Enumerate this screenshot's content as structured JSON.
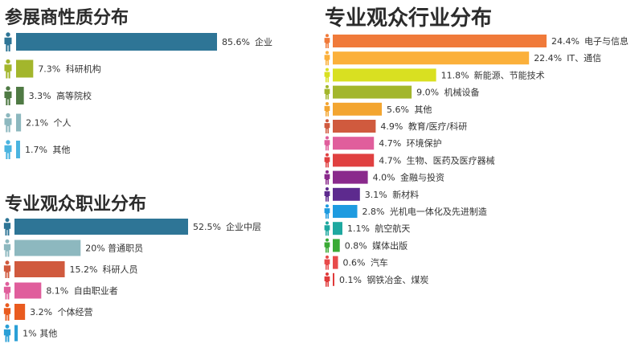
{
  "chart_data": [
    {
      "id": "exhibitor",
      "type": "bar",
      "title": "参展商性质分布",
      "categories": [
        "企业",
        "科研机构",
        "高等院校",
        "个人",
        "其他"
      ],
      "values": [
        85.6,
        7.3,
        3.3,
        2.1,
        1.7
      ],
      "value_labels": [
        "85.6%",
        "7.3%",
        "3.3%",
        "2.1%",
        "1.7%"
      ],
      "colors": [
        "#2e7596",
        "#a3b62c",
        "#4f7a44",
        "#8db8bf",
        "#4ab4e0"
      ]
    },
    {
      "id": "occupation",
      "type": "bar",
      "title": "专业观众职业分布",
      "categories": [
        "企业中层",
        "普通职员",
        "科研人员",
        "自由职业者",
        "个体经营",
        "其他"
      ],
      "values": [
        52.5,
        20,
        15.2,
        8.1,
        3.2,
        1
      ],
      "value_labels": [
        "52.5%",
        "20%",
        "15.2%",
        "8.1%",
        "3.2%",
        "1%"
      ],
      "colors": [
        "#2e7596",
        "#8db8bf",
        "#d05a3e",
        "#e05e9c",
        "#e95b1f",
        "#2a9fd6"
      ]
    },
    {
      "id": "industry",
      "type": "bar",
      "title": "专业观众行业分布",
      "categories": [
        "电子与信息",
        "IT、通信",
        "新能源、节能技术",
        "机械设备",
        "其他",
        "教育/医疗/科研",
        "环境保护",
        "生物、医药及医疗器械",
        "金融与投资",
        "新材料",
        "光机电一体化及先进制造",
        "航空航天",
        "媒体出版",
        "汽车",
        "钢铁冶金、煤炭"
      ],
      "values": [
        24.4,
        22.4,
        11.8,
        9.0,
        5.6,
        4.9,
        4.7,
        4.7,
        4.0,
        3.1,
        2.8,
        1.1,
        0.8,
        0.6,
        0.1
      ],
      "value_labels": [
        "24.4%",
        "22.4%",
        "11.8%",
        "9.0%",
        "5.6%",
        "4.9%",
        "4.7%",
        "4.7%",
        "4.0%",
        "3.1%",
        "2.8%",
        "1.1%",
        "0.8%",
        "0.6%",
        "0.1%"
      ],
      "colors": [
        "#f07a3a",
        "#fbb03b",
        "#d9e021",
        "#a3b62c",
        "#f3a530",
        "#d05a3e",
        "#e05e9c",
        "#e04040",
        "#8a2a8c",
        "#5d2a8e",
        "#1e9be0",
        "#1ea8a0",
        "#3aaa35",
        "#e84a4a",
        "#e03a3a"
      ]
    }
  ]
}
